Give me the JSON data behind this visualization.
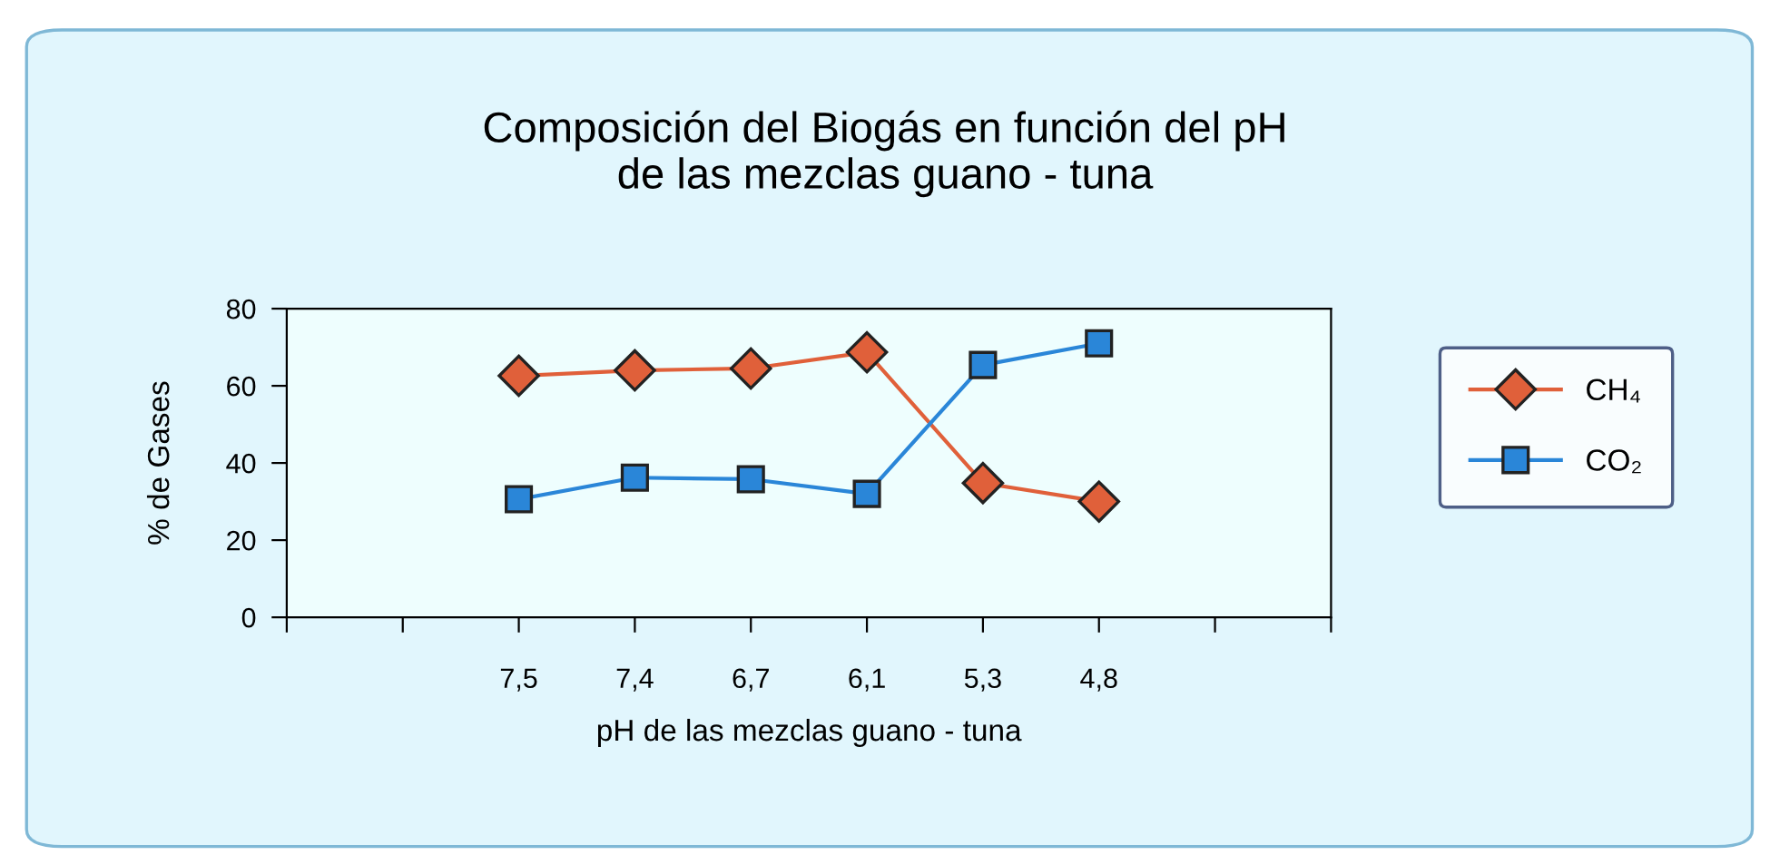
{
  "chart_data": {
    "type": "line",
    "title": "Composición del Biogás en función del pH\nde las mezclas guano - tuna",
    "xlabel": "pH de las mezclas guano - tuna",
    "ylabel": "% de Gases",
    "categories": [
      null,
      null,
      "7,5",
      "7,4",
      "6,7",
      "6,1",
      "5,3",
      "4,8",
      null,
      null
    ],
    "series": [
      {
        "name": "CH₄",
        "color": "#e0603a",
        "marker": "diamond",
        "values": [
          null,
          null,
          62.6,
          64,
          64.5,
          68.7,
          34.8,
          30,
          null,
          null
        ]
      },
      {
        "name": "CO₂",
        "color": "#2a86d8",
        "marker": "square",
        "values": [
          null,
          null,
          30.6,
          36.2,
          35.8,
          32,
          65.4,
          71,
          null,
          null
        ]
      }
    ],
    "ylim": [
      0,
      80
    ],
    "yticks": [
      0,
      20,
      40,
      60,
      80
    ],
    "grid": false,
    "legend": "right",
    "line_style": "solid"
  }
}
